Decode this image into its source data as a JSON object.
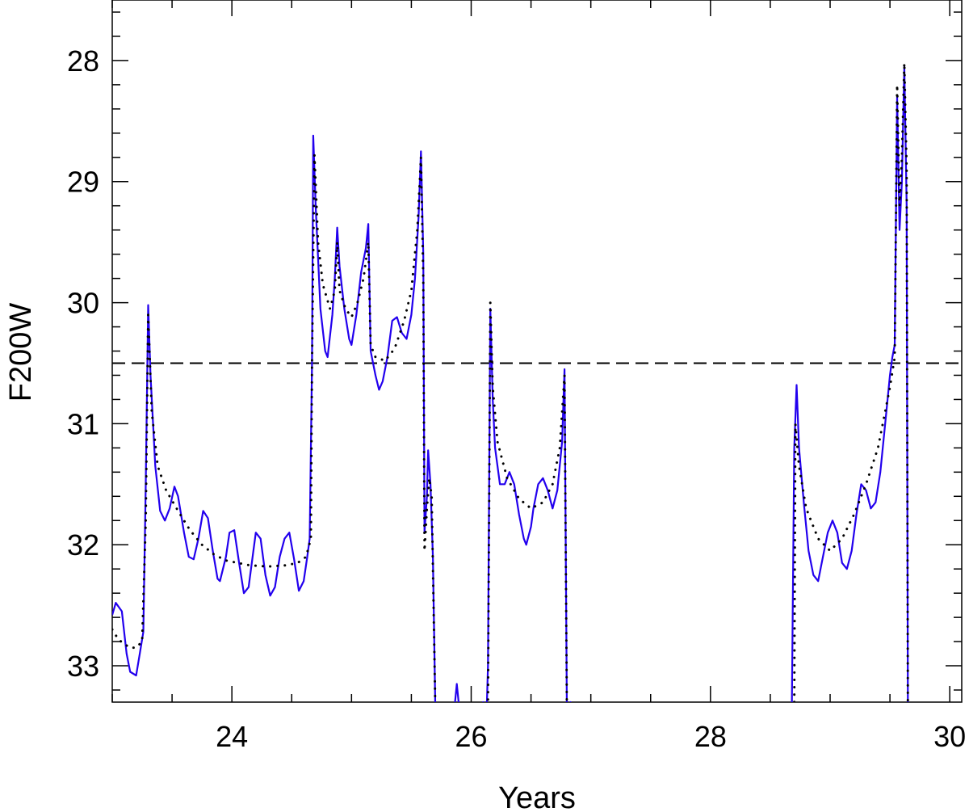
{
  "chart_data": {
    "type": "line",
    "title": "",
    "xlabel": "Years",
    "ylabel": "F200W",
    "xlim": [
      23.0,
      30.1
    ],
    "ylim": [
      33.3,
      27.5
    ],
    "y_inverted": true,
    "grid": false,
    "x_ticks": [
      24,
      26,
      28,
      30
    ],
    "x_tick_labels": [
      "24",
      "26",
      "28",
      "30"
    ],
    "y_ticks": [
      28,
      29,
      30,
      31,
      32,
      33
    ],
    "y_tick_labels": [
      "28",
      "29",
      "30",
      "31",
      "32",
      "33"
    ],
    "threshold": {
      "value": 30.5,
      "style": "dashed",
      "color": "#000000"
    },
    "series": [
      {
        "style": "solid",
        "color": "#2200ee",
        "points": [
          [
            23.0,
            32.58
          ],
          [
            23.03,
            32.48
          ],
          [
            23.08,
            32.55
          ],
          [
            23.12,
            32.9
          ],
          [
            23.15,
            33.05
          ],
          [
            23.2,
            33.08
          ],
          [
            23.23,
            32.9
          ],
          [
            23.26,
            32.72
          ],
          [
            23.28,
            31.5
          ],
          [
            23.3,
            30.02
          ],
          [
            23.32,
            30.6
          ],
          [
            23.36,
            31.35
          ],
          [
            23.4,
            31.72
          ],
          [
            23.44,
            31.8
          ],
          [
            23.48,
            31.7
          ],
          [
            23.52,
            31.52
          ],
          [
            23.55,
            31.6
          ],
          [
            23.6,
            31.9
          ],
          [
            23.64,
            32.1
          ],
          [
            23.68,
            32.12
          ],
          [
            23.72,
            31.95
          ],
          [
            23.76,
            31.72
          ],
          [
            23.8,
            31.78
          ],
          [
            23.84,
            32.05
          ],
          [
            23.88,
            32.28
          ],
          [
            23.9,
            32.3
          ],
          [
            23.95,
            32.1
          ],
          [
            23.98,
            31.9
          ],
          [
            24.02,
            31.88
          ],
          [
            24.06,
            32.15
          ],
          [
            24.1,
            32.4
          ],
          [
            24.14,
            32.35
          ],
          [
            24.18,
            32.05
          ],
          [
            24.2,
            31.9
          ],
          [
            24.24,
            31.95
          ],
          [
            24.28,
            32.25
          ],
          [
            24.32,
            32.42
          ],
          [
            24.36,
            32.35
          ],
          [
            24.4,
            32.1
          ],
          [
            24.44,
            31.95
          ],
          [
            24.48,
            31.9
          ],
          [
            24.52,
            32.12
          ],
          [
            24.56,
            32.38
          ],
          [
            24.6,
            32.3
          ],
          [
            24.63,
            32.1
          ],
          [
            24.65,
            31.95
          ],
          [
            24.67,
            30.5
          ],
          [
            24.68,
            28.62
          ],
          [
            24.7,
            29.2
          ],
          [
            24.74,
            30.05
          ],
          [
            24.78,
            30.4
          ],
          [
            24.8,
            30.45
          ],
          [
            24.84,
            30.1
          ],
          [
            24.86,
            29.8
          ],
          [
            24.88,
            29.38
          ],
          [
            24.9,
            29.7
          ],
          [
            24.94,
            30.05
          ],
          [
            24.98,
            30.3
          ],
          [
            25.0,
            30.35
          ],
          [
            25.04,
            30.1
          ],
          [
            25.08,
            29.75
          ],
          [
            25.12,
            29.55
          ],
          [
            25.14,
            29.35
          ],
          [
            25.16,
            30.4
          ],
          [
            25.2,
            30.6
          ],
          [
            25.23,
            30.72
          ],
          [
            25.26,
            30.65
          ],
          [
            25.3,
            30.45
          ],
          [
            25.34,
            30.15
          ],
          [
            25.38,
            30.12
          ],
          [
            25.42,
            30.25
          ],
          [
            25.46,
            30.3
          ],
          [
            25.5,
            30.1
          ],
          [
            25.53,
            29.8
          ],
          [
            25.56,
            29.3
          ],
          [
            25.58,
            28.75
          ],
          [
            25.6,
            29.6
          ],
          [
            25.61,
            31.9
          ],
          [
            25.63,
            31.6
          ],
          [
            25.64,
            31.22
          ],
          [
            25.66,
            31.5
          ],
          [
            25.68,
            32.1
          ],
          [
            25.7,
            33.35
          ],
          [
            25.86,
            33.35
          ],
          [
            25.88,
            33.15
          ],
          [
            25.9,
            33.35
          ],
          [
            26.08,
            33.35
          ],
          [
            26.1,
            33.3
          ],
          [
            26.13,
            33.35
          ],
          [
            26.14,
            33.0
          ],
          [
            26.16,
            30.05
          ],
          [
            26.18,
            30.8
          ],
          [
            26.2,
            31.2
          ],
          [
            26.24,
            31.5
          ],
          [
            26.28,
            31.5
          ],
          [
            26.32,
            31.4
          ],
          [
            26.36,
            31.5
          ],
          [
            26.4,
            31.75
          ],
          [
            26.44,
            31.95
          ],
          [
            26.46,
            32.0
          ],
          [
            26.5,
            31.85
          ],
          [
            26.52,
            31.7
          ],
          [
            26.56,
            31.5
          ],
          [
            26.6,
            31.45
          ],
          [
            26.64,
            31.55
          ],
          [
            26.68,
            31.7
          ],
          [
            26.72,
            31.55
          ],
          [
            26.76,
            31.15
          ],
          [
            26.78,
            30.55
          ],
          [
            26.8,
            33.35
          ],
          [
            26.83,
            33.3
          ],
          [
            26.85,
            33.35
          ],
          [
            28.68,
            33.35
          ],
          [
            28.7,
            31.2
          ],
          [
            28.72,
            30.68
          ],
          [
            28.74,
            31.2
          ],
          [
            28.78,
            31.65
          ],
          [
            28.82,
            32.05
          ],
          [
            28.86,
            32.25
          ],
          [
            28.9,
            32.3
          ],
          [
            28.94,
            32.1
          ],
          [
            28.98,
            31.9
          ],
          [
            29.02,
            31.8
          ],
          [
            29.06,
            31.9
          ],
          [
            29.1,
            32.15
          ],
          [
            29.14,
            32.2
          ],
          [
            29.18,
            32.05
          ],
          [
            29.22,
            31.75
          ],
          [
            29.26,
            31.5
          ],
          [
            29.3,
            31.55
          ],
          [
            29.34,
            31.7
          ],
          [
            29.38,
            31.65
          ],
          [
            29.42,
            31.4
          ],
          [
            29.46,
            31.0
          ],
          [
            29.5,
            30.6
          ],
          [
            29.52,
            30.45
          ],
          [
            29.54,
            30.35
          ],
          [
            29.56,
            28.3
          ],
          [
            29.58,
            29.4
          ],
          [
            29.6,
            29.0
          ],
          [
            29.62,
            28.05
          ],
          [
            29.64,
            29.2
          ],
          [
            29.65,
            33.35
          ]
        ]
      },
      {
        "style": "dotted",
        "color": "#000000",
        "points": [
          [
            23.0,
            32.7
          ],
          [
            23.05,
            32.78
          ],
          [
            23.1,
            32.82
          ],
          [
            23.15,
            32.85
          ],
          [
            23.2,
            32.85
          ],
          [
            23.25,
            32.8
          ],
          [
            23.28,
            31.8
          ],
          [
            23.3,
            30.1
          ],
          [
            23.33,
            30.9
          ],
          [
            23.38,
            31.35
          ],
          [
            23.45,
            31.55
          ],
          [
            23.55,
            31.72
          ],
          [
            23.65,
            31.88
          ],
          [
            23.75,
            32.0
          ],
          [
            23.85,
            32.08
          ],
          [
            23.95,
            32.13
          ],
          [
            24.05,
            32.15
          ],
          [
            24.15,
            32.17
          ],
          [
            24.3,
            32.18
          ],
          [
            24.45,
            32.17
          ],
          [
            24.55,
            32.15
          ],
          [
            24.62,
            32.1
          ],
          [
            24.66,
            31.95
          ],
          [
            24.67,
            30.5
          ],
          [
            24.69,
            28.78
          ],
          [
            24.72,
            29.5
          ],
          [
            24.76,
            29.85
          ],
          [
            24.82,
            30.05
          ],
          [
            24.86,
            29.9
          ],
          [
            24.88,
            29.5
          ],
          [
            24.9,
            29.9
          ],
          [
            24.95,
            30.05
          ],
          [
            25.0,
            30.12
          ],
          [
            25.05,
            30.0
          ],
          [
            25.1,
            29.8
          ],
          [
            25.14,
            29.5
          ],
          [
            25.16,
            30.35
          ],
          [
            25.2,
            30.45
          ],
          [
            25.28,
            30.48
          ],
          [
            25.36,
            30.38
          ],
          [
            25.44,
            30.15
          ],
          [
            25.5,
            29.9
          ],
          [
            25.55,
            29.4
          ],
          [
            25.58,
            28.8
          ],
          [
            25.6,
            29.8
          ],
          [
            25.61,
            32.05
          ],
          [
            25.63,
            31.7
          ],
          [
            25.65,
            31.45
          ],
          [
            25.67,
            31.6
          ],
          [
            25.7,
            33.35
          ],
          [
            26.14,
            33.35
          ],
          [
            26.16,
            30.0
          ],
          [
            26.18,
            30.7
          ],
          [
            26.22,
            31.15
          ],
          [
            26.3,
            31.45
          ],
          [
            26.4,
            31.62
          ],
          [
            26.5,
            31.7
          ],
          [
            26.6,
            31.65
          ],
          [
            26.68,
            31.5
          ],
          [
            26.74,
            31.2
          ],
          [
            26.78,
            30.6
          ],
          [
            26.8,
            33.35
          ],
          [
            28.7,
            33.35
          ],
          [
            28.71,
            31.0
          ],
          [
            28.74,
            31.35
          ],
          [
            28.8,
            31.7
          ],
          [
            28.9,
            31.95
          ],
          [
            29.0,
            32.05
          ],
          [
            29.1,
            31.95
          ],
          [
            29.2,
            31.75
          ],
          [
            29.3,
            31.5
          ],
          [
            29.4,
            31.2
          ],
          [
            29.46,
            30.9
          ],
          [
            29.5,
            30.7
          ],
          [
            29.54,
            30.45
          ],
          [
            29.56,
            28.2
          ],
          [
            29.58,
            29.2
          ],
          [
            29.6,
            28.8
          ],
          [
            29.62,
            28.02
          ],
          [
            29.64,
            28.9
          ],
          [
            29.65,
            33.35
          ]
        ]
      }
    ]
  }
}
